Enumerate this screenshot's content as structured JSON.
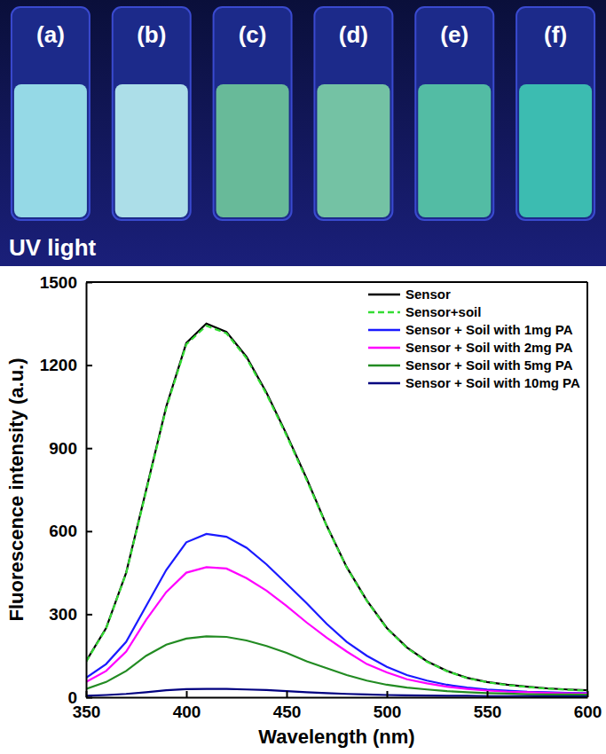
{
  "photo": {
    "vials": [
      {
        "label": "(a)",
        "color": "#9fe8ee"
      },
      {
        "label": "(b)",
        "color": "#b9eef0"
      },
      {
        "label": "(c)",
        "color": "#6fc79a"
      },
      {
        "label": "(d)",
        "color": "#7ccfa6"
      },
      {
        "label": "(e)",
        "color": "#58c9a6"
      },
      {
        "label": "(f)",
        "color": "#3fc9b4"
      }
    ],
    "caption": "UV light"
  },
  "chart_data": {
    "type": "line",
    "x_label": "Wavelength (nm)",
    "y_label": "Fluorescence intensity (a.u.)",
    "x": [
      350,
      360,
      370,
      380,
      390,
      400,
      410,
      420,
      430,
      440,
      450,
      460,
      470,
      480,
      490,
      500,
      510,
      520,
      530,
      540,
      550,
      560,
      570,
      580,
      590,
      600
    ],
    "series": [
      {
        "name": "Sensor",
        "color": "#000000",
        "line_style": "solid",
        "values": [
          130,
          250,
          450,
          750,
          1050,
          1280,
          1350,
          1320,
          1230,
          1100,
          950,
          790,
          620,
          470,
          350,
          250,
          180,
          130,
          95,
          70,
          55,
          45,
          38,
          32,
          28,
          25
        ]
      },
      {
        "name": "Sensor+soil",
        "color": "#33dd33",
        "line_style": "dashed",
        "values": [
          128,
          248,
          448,
          745,
          1045,
          1275,
          1342,
          1315,
          1225,
          1095,
          945,
          785,
          618,
          468,
          348,
          248,
          178,
          128,
          94,
          69,
          54,
          44,
          37,
          31,
          27,
          24
        ]
      },
      {
        "name": "Sensor + Soil with 1mg PA",
        "color": "#1a1aff",
        "line_style": "solid",
        "values": [
          70,
          120,
          200,
          330,
          460,
          560,
          590,
          580,
          540,
          480,
          410,
          340,
          265,
          200,
          150,
          110,
          80,
          60,
          45,
          35,
          28,
          24,
          20,
          18,
          16,
          15
        ]
      },
      {
        "name": "Sensor + Soil with 2mg PA",
        "color": "#ff00ff",
        "line_style": "solid",
        "values": [
          55,
          95,
          165,
          280,
          380,
          450,
          470,
          465,
          430,
          385,
          330,
          270,
          215,
          165,
          120,
          90,
          65,
          50,
          38,
          30,
          24,
          20,
          18,
          16,
          14,
          13
        ]
      },
      {
        "name": "Sensor + Soil with 5mg PA",
        "color": "#228b22",
        "line_style": "solid",
        "values": [
          30,
          55,
          95,
          150,
          190,
          212,
          220,
          218,
          205,
          185,
          160,
          130,
          105,
          80,
          60,
          45,
          35,
          28,
          22,
          18,
          15,
          13,
          11,
          10,
          10,
          9
        ]
      },
      {
        "name": "Sensor + Soil with 10mg PA",
        "color": "#000080",
        "line_style": "solid",
        "values": [
          5,
          8,
          12,
          18,
          25,
          29,
          30,
          30,
          28,
          26,
          22,
          18,
          15,
          12,
          10,
          8,
          7,
          6,
          5,
          5,
          4,
          4,
          4,
          3,
          3,
          3
        ]
      }
    ],
    "xlim": [
      350,
      600
    ],
    "xticks": [
      350,
      400,
      450,
      500,
      550,
      600
    ],
    "ylim": [
      0,
      1500
    ],
    "yticks": [
      0,
      300,
      600,
      900,
      1200,
      1500
    ],
    "legend": "upper right",
    "grid": false
  }
}
